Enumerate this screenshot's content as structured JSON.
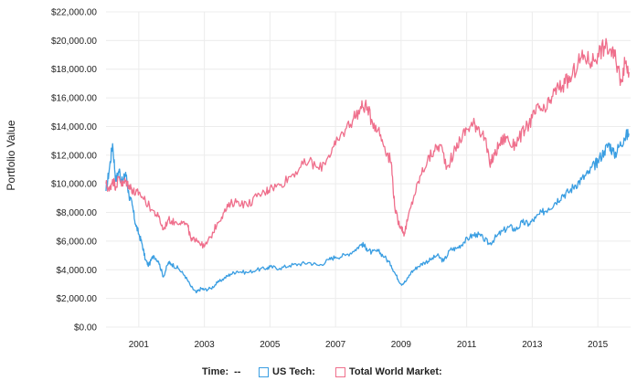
{
  "chart_data": {
    "type": "line",
    "title": "",
    "xlabel": "",
    "ylabel": "Portfolio Value",
    "xlim": [
      2000.0,
      2016.0
    ],
    "ylim": [
      0,
      22000
    ],
    "y_ticks": [
      {
        "value": 0,
        "label": "$0.00"
      },
      {
        "value": 2000,
        "label": "$2,000.00"
      },
      {
        "value": 4000,
        "label": "$4,000.00"
      },
      {
        "value": 6000,
        "label": "$6,000.00"
      },
      {
        "value": 8000,
        "label": "$8,000.00"
      },
      {
        "value": 10000,
        "label": "$10,000.00"
      },
      {
        "value": 12000,
        "label": "$12,000.00"
      },
      {
        "value": 14000,
        "label": "$14,000.00"
      },
      {
        "value": 16000,
        "label": "$16,000.00"
      },
      {
        "value": 18000,
        "label": "$18,000.00"
      },
      {
        "value": 20000,
        "label": "$20,000.00"
      },
      {
        "value": 22000,
        "label": "$22,000.00"
      }
    ],
    "x_ticks": [
      {
        "value": 2001,
        "label": "2001"
      },
      {
        "value": 2003,
        "label": "2003"
      },
      {
        "value": 2005,
        "label": "2005"
      },
      {
        "value": 2007,
        "label": "2007"
      },
      {
        "value": 2009,
        "label": "2009"
      },
      {
        "value": 2011,
        "label": "2011"
      },
      {
        "value": 2013,
        "label": "2013"
      },
      {
        "value": 2015,
        "label": "2015"
      }
    ],
    "grid": true,
    "legend": {
      "time_label": "Time:",
      "time_value": "--"
    },
    "series": [
      {
        "name": "US Tech:",
        "color": "#3a9ee2",
        "x": [
          2000.0,
          2000.1,
          2000.2,
          2000.3,
          2000.4,
          2000.5,
          2000.6,
          2000.7,
          2000.8,
          2000.9,
          2001.0,
          2001.1,
          2001.2,
          2001.3,
          2001.45,
          2001.6,
          2001.75,
          2001.9,
          2002.0,
          2002.2,
          2002.4,
          2002.6,
          2002.75,
          2002.9,
          2003.0,
          2003.2,
          2003.4,
          2003.6,
          2003.8,
          2004.0,
          2004.3,
          2004.6,
          2004.9,
          2005.0,
          2005.3,
          2005.6,
          2005.9,
          2006.2,
          2006.5,
          2006.8,
          2007.0,
          2007.3,
          2007.6,
          2007.8,
          2007.95,
          2008.1,
          2008.3,
          2008.5,
          2008.7,
          2008.85,
          2009.0,
          2009.15,
          2009.3,
          2009.5,
          2009.7,
          2009.9,
          2010.1,
          2010.3,
          2010.5,
          2010.7,
          2010.9,
          2011.1,
          2011.3,
          2011.5,
          2011.7,
          2011.9,
          2012.1,
          2012.3,
          2012.5,
          2012.7,
          2012.9,
          2013.1,
          2013.3,
          2013.5,
          2013.7,
          2013.9,
          2014.1,
          2014.3,
          2014.5,
          2014.7,
          2014.9,
          2015.0,
          2015.2,
          2015.35,
          2015.5,
          2015.65,
          2015.8,
          2015.95
        ],
        "values": [
          9500,
          11000,
          12800,
          10200,
          11000,
          10000,
          10800,
          9200,
          8500,
          7200,
          6500,
          5800,
          4700,
          4300,
          5000,
          4600,
          3500,
          4500,
          4400,
          4100,
          3600,
          2800,
          2400,
          2700,
          2600,
          2700,
          3100,
          3400,
          3700,
          3900,
          3800,
          4000,
          4100,
          4200,
          4100,
          4300,
          4400,
          4500,
          4300,
          4700,
          4900,
          5000,
          5400,
          5800,
          5500,
          5200,
          5300,
          4900,
          4300,
          3600,
          3000,
          3200,
          3800,
          4200,
          4500,
          4700,
          5000,
          4600,
          5400,
          5500,
          5900,
          6300,
          6500,
          6200,
          5800,
          6300,
          6700,
          7000,
          6800,
          7300,
          7200,
          7600,
          8000,
          8300,
          8700,
          9200,
          9400,
          9900,
          10300,
          10700,
          11300,
          11600,
          12300,
          12800,
          12000,
          12600,
          13200,
          13500
        ]
      },
      {
        "name": "Total World Market:",
        "color": "#ef6f8c",
        "x": [
          2000.0,
          2000.1,
          2000.2,
          2000.3,
          2000.4,
          2000.5,
          2000.6,
          2000.7,
          2000.8,
          2000.9,
          2001.0,
          2001.2,
          2001.4,
          2001.6,
          2001.75,
          2001.9,
          2002.1,
          2002.3,
          2002.5,
          2002.6,
          2002.75,
          2002.9,
          2003.0,
          2003.2,
          2003.4,
          2003.6,
          2003.8,
          2004.0,
          2004.3,
          2004.6,
          2004.9,
          2005.0,
          2005.3,
          2005.6,
          2005.9,
          2006.2,
          2006.5,
          2006.8,
          2007.0,
          2007.3,
          2007.55,
          2007.75,
          2007.9,
          2008.1,
          2008.3,
          2008.5,
          2008.7,
          2008.8,
          2008.9,
          2009.0,
          2009.1,
          2009.2,
          2009.4,
          2009.6,
          2009.8,
          2010.0,
          2010.2,
          2010.4,
          2010.6,
          2010.8,
          2011.0,
          2011.2,
          2011.35,
          2011.55,
          2011.7,
          2011.85,
          2012.0,
          2012.2,
          2012.4,
          2012.6,
          2012.8,
          2013.0,
          2013.2,
          2013.4,
          2013.6,
          2013.8,
          2014.0,
          2014.2,
          2014.4,
          2014.6,
          2014.8,
          2015.0,
          2015.2,
          2015.4,
          2015.55,
          2015.7,
          2015.85,
          2015.95
        ],
        "values": [
          10000,
          9500,
          10300,
          9800,
          10500,
          9900,
          10200,
          9900,
          9600,
          9300,
          9400,
          8800,
          8200,
          7700,
          6800,
          7500,
          7300,
          7400,
          7000,
          6000,
          6200,
          5800,
          5600,
          6300,
          7300,
          8000,
          8600,
          8800,
          8500,
          9100,
          9500,
          9700,
          9900,
          10500,
          11100,
          11600,
          11000,
          12000,
          12700,
          13800,
          14600,
          15200,
          15500,
          14500,
          13800,
          12600,
          11500,
          8500,
          7400,
          7000,
          6500,
          7500,
          9200,
          10600,
          11600,
          12300,
          12700,
          11200,
          12100,
          13100,
          13800,
          14200,
          14000,
          13200,
          11400,
          12000,
          12800,
          13300,
          12600,
          13200,
          13800,
          14600,
          15300,
          15000,
          16100,
          16700,
          17000,
          17400,
          18500,
          18900,
          18500,
          19100,
          19600,
          19300,
          18600,
          17300,
          18500,
          17800
        ]
      }
    ]
  }
}
